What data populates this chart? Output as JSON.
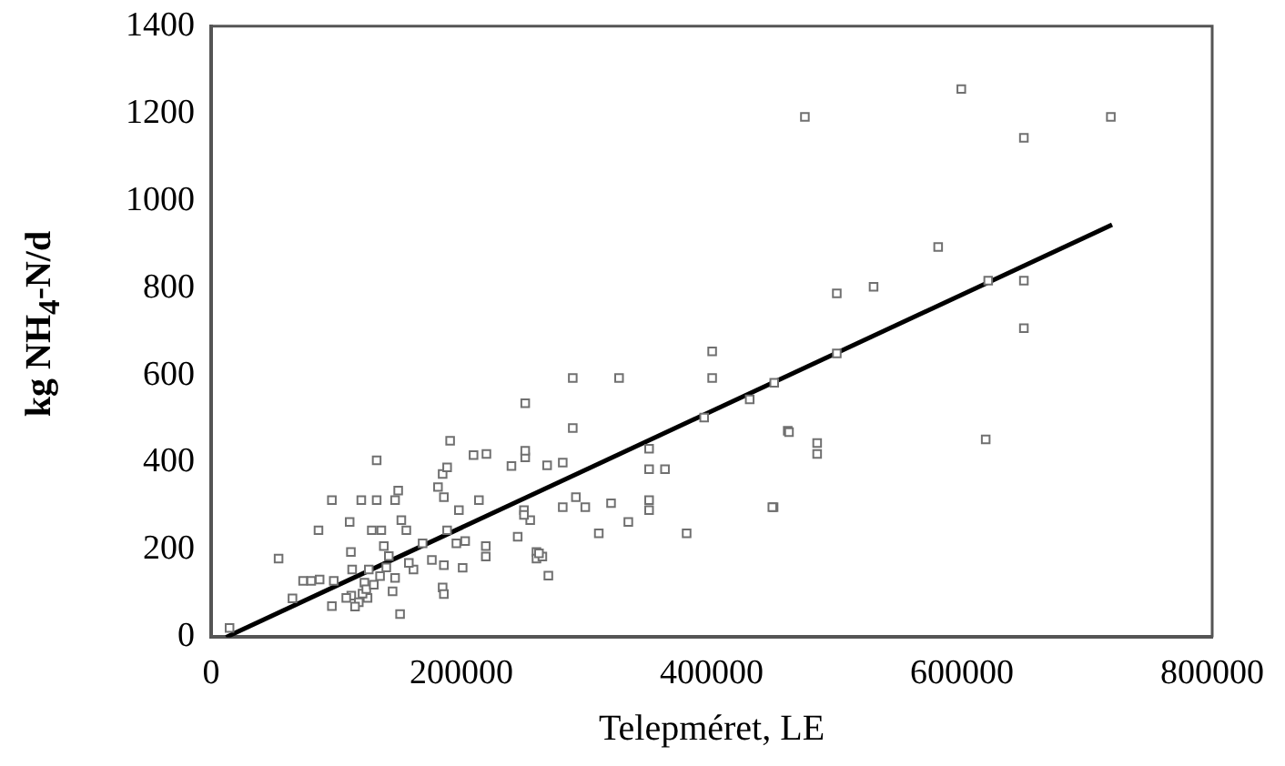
{
  "chart_data": {
    "type": "scatter",
    "xlabel": "Telepméret, LE",
    "ylabel": "kg NH$_{4}$-N/d",
    "xlim": [
      0,
      800000
    ],
    "xticks": [
      0,
      200000,
      400000,
      600000,
      800000
    ],
    "ylim": [
      0,
      1400
    ],
    "yticks": [
      0,
      200,
      400,
      600,
      800,
      1000,
      1200,
      1400
    ],
    "grid": false,
    "legend": false,
    "marker": "square",
    "series": [
      {
        "type": "scatter",
        "color": "#707070",
        "x": [
          14700,
          53900,
          65000,
          73500,
          80000,
          86700,
          85800,
          96500,
          98000,
          96500,
          110700,
          111700,
          112700,
          112000,
          120000,
          132300,
          132300,
          128400,
          136000,
          138000,
          126000,
          122500,
          125000,
          142000,
          147000,
          149500,
          152000,
          156000,
          151000,
          147000,
          161700,
          169000,
          176400,
          181300,
          185000,
          188600,
          191000,
          186000,
          188600,
          196000,
          198000,
          203000,
          201000,
          185000,
          186000,
          186000,
          209700,
          220000,
          214000,
          219500,
          219500,
          240000,
          251000,
          251000,
          251000,
          245000,
          250000,
          255000,
          260000,
          260000,
          269500,
          268500,
          281000,
          281000,
          289000,
          289000,
          291500,
          326000,
          350000,
          350000,
          362700,
          400400,
          400400,
          394000,
          430400,
          460800,
          449500,
          380000,
          350000,
          350000,
          319600,
          333400,
          309800,
          299000,
          264700,
          262000,
          250000,
          474500,
          599500,
          649500,
          719000,
          581000,
          500000,
          529400,
          649500,
          621000,
          649500,
          619000,
          461800,
          484300,
          484300,
          448500,
          450000,
          500000,
          118000,
          121000,
          124000,
          130000,
          135000,
          140000,
          145000,
          108000,
          115000,
          158000
        ],
        "values": [
          21,
          180,
          89,
          129,
          129,
          132,
          245,
          314,
          129,
          71,
          264,
          195,
          155,
          95,
          314,
          314,
          405,
          245,
          245,
          209,
          155,
          125,
          90,
          186,
          314,
          336,
          268,
          245,
          53,
          136,
          155,
          215,
          177,
          344,
          374,
          389,
          450,
          321,
          245,
          215,
          291,
          220,
          159,
          114,
          99,
          165,
          417,
          420,
          314,
          209,
          185,
          392,
          536,
          412,
          427,
          230,
          291,
          268,
          195,
          180,
          141,
          394,
          400,
          298,
          594,
          479,
          321,
          594,
          432,
          385,
          385,
          655,
          594,
          503,
          545,
          473,
          298,
          238,
          314,
          291,
          307,
          264,
          238,
          298,
          185,
          192,
          280,
          1192,
          1256,
          1144,
          1192,
          894,
          788,
          803,
          817,
          817,
          708,
          453,
          470,
          445,
          420,
          298,
          583,
          650,
          80,
          100,
          110,
          120,
          140,
          160,
          105,
          90,
          70,
          170
        ]
      },
      {
        "type": "line",
        "color": "#000000",
        "marker": "none",
        "x": [
          12000,
          720000
        ],
        "values": [
          0,
          945
        ]
      }
    ]
  }
}
